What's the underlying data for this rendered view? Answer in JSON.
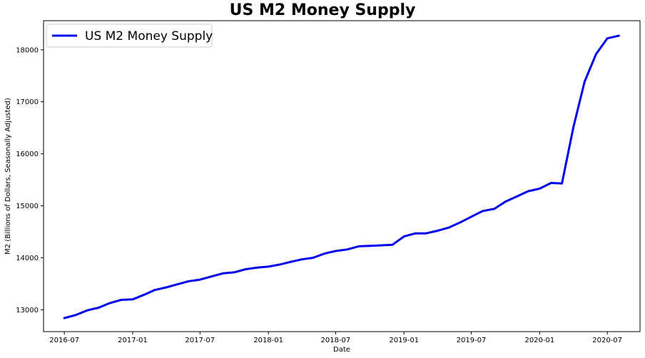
{
  "chart_data": {
    "type": "line",
    "title": "US M2 Money Supply",
    "xlabel": "Date",
    "ylabel": "M2 (Billions of Dollars, Seasonally Adjusted)",
    "x_ticks": [
      "2016-07",
      "2017-01",
      "2017-07",
      "2018-01",
      "2018-07",
      "2019-01",
      "2019-07",
      "2020-01",
      "2020-07"
    ],
    "y_ticks": [
      13000,
      14000,
      15000,
      16000,
      17000,
      18000
    ],
    "ylim": [
      12580,
      18560
    ],
    "xlim": [
      "2016-05-06",
      "2020-09-27"
    ],
    "legend": {
      "position": "top-left",
      "entries": [
        "US M2 Money Supply"
      ]
    },
    "grid": false,
    "series": [
      {
        "name": "US M2 Money Supply",
        "color": "#0000ee",
        "x": [
          "2016-07",
          "2016-08",
          "2016-09",
          "2016-10",
          "2016-11",
          "2016-12",
          "2017-01",
          "2017-02",
          "2017-03",
          "2017-04",
          "2017-05",
          "2017-06",
          "2017-07",
          "2017-08",
          "2017-09",
          "2017-10",
          "2017-11",
          "2017-12",
          "2018-01",
          "2018-02",
          "2018-03",
          "2018-04",
          "2018-05",
          "2018-06",
          "2018-07",
          "2018-08",
          "2018-09",
          "2018-10",
          "2018-11",
          "2018-12",
          "2019-01",
          "2019-02",
          "2019-03",
          "2019-04",
          "2019-05",
          "2019-06",
          "2019-07",
          "2019-08",
          "2019-09",
          "2019-10",
          "2019-11",
          "2019-12",
          "2020-01",
          "2020-02",
          "2020-03",
          "2020-04",
          "2020-05",
          "2020-06",
          "2020-07",
          "2020-08"
        ],
        "y": [
          12840,
          12900,
          12990,
          13040,
          13130,
          13190,
          13200,
          13290,
          13380,
          13430,
          13490,
          13550,
          13580,
          13640,
          13700,
          13720,
          13780,
          13810,
          13830,
          13870,
          13920,
          13970,
          14000,
          14080,
          14130,
          14160,
          14220,
          14230,
          14240,
          14250,
          14410,
          14470,
          14470,
          14520,
          14580,
          14680,
          14790,
          14900,
          14940,
          15080,
          15180,
          15280,
          15330,
          15440,
          15430,
          16520,
          17390,
          17920,
          18220,
          18270
        ]
      }
    ]
  }
}
